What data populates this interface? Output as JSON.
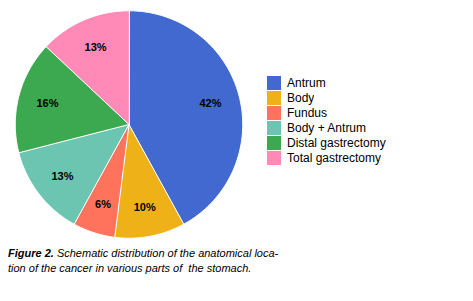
{
  "chart_data": {
    "type": "pie",
    "categories": [
      "Antrum",
      "Body",
      "Fundus",
      "Body + Antrum",
      "Distal gastrectomy",
      "Total gastrectomy"
    ],
    "values": [
      42,
      10,
      6,
      13,
      16,
      13
    ],
    "value_labels": [
      "42%",
      "10%",
      "6%",
      "13%",
      "16%",
      "13%"
    ],
    "data_labels": true,
    "legend": "right",
    "caption": "Figure 2. Schematic distribution of the anatomical loca-\ntion of the cancer in various parts of  the stomach."
  }
}
